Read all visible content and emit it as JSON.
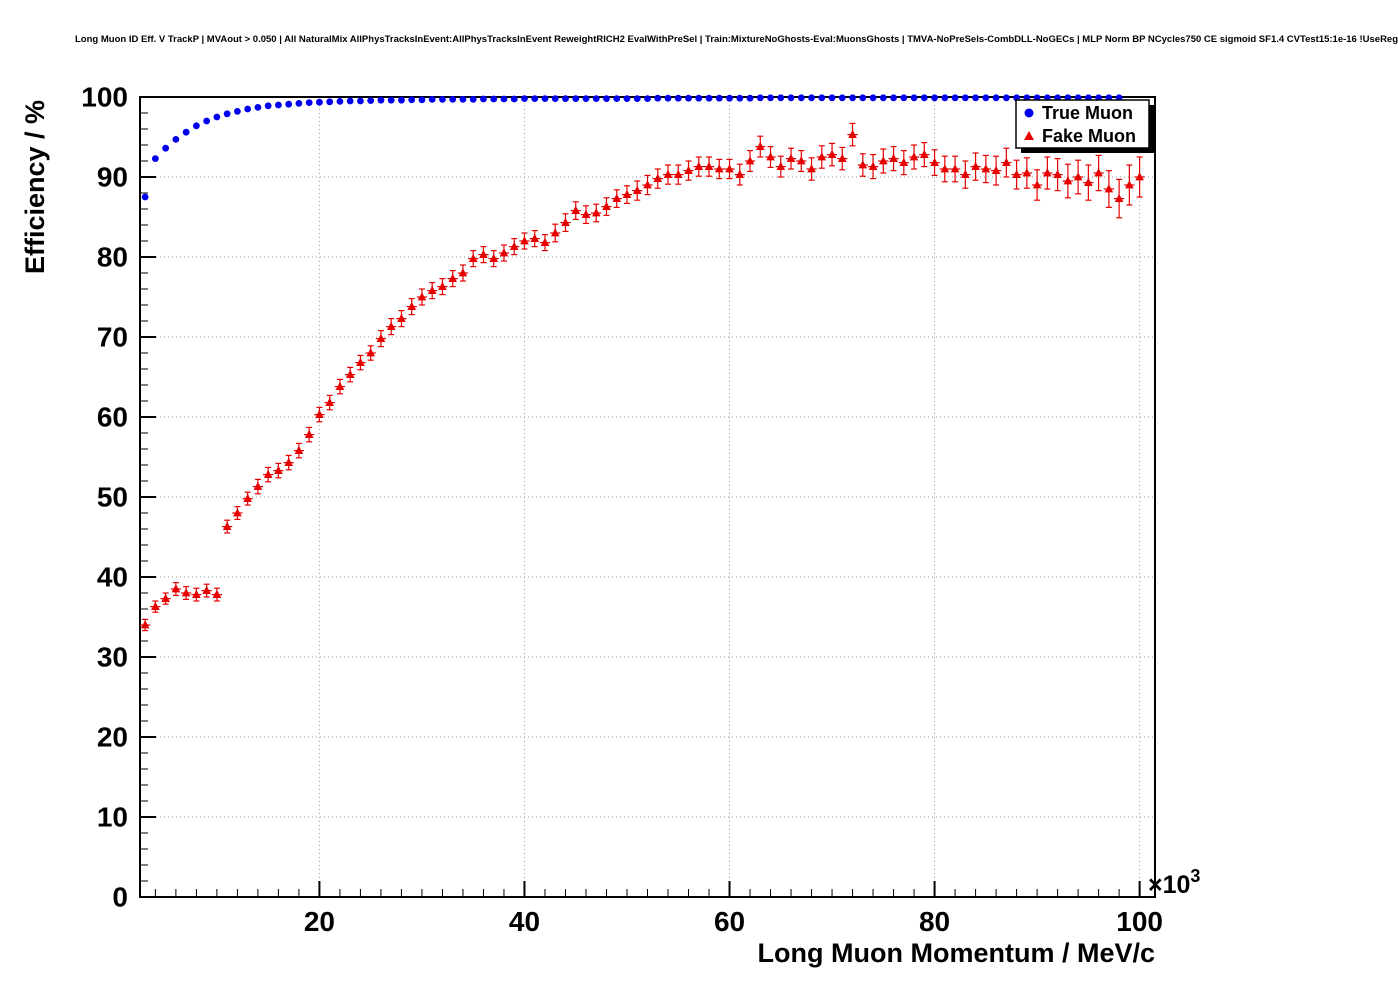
{
  "title": "Long Muon ID Eff. V TrackP | MVAout > 0.050 | All NaturalMix AllPhysTracksInEvent:AllPhysTracksInEvent ReweightRICH2 EvalWithPreSel | Train:MixtureNoGhosts-Eval:MuonsGhosts | TMVA-NoPreSels-CombDLL-NoGECs | MLP Norm BP NCycles750 CE sigmoid SF1.4 CVTest15:1e-16 !UseReg",
  "chart_data": {
    "type": "scatter",
    "title": "Long Muon ID Eff. V TrackP | MVAout > 0.050 | All NaturalMix AllPhysTracksInEvent:AllPhysTracksInEvent ReweightRICH2 EvalWithPreSel | Train:MixtureNoGhosts-Eval:MuonsGhosts | TMVA-NoPreSels-CombDLL-NoGECs | MLP Norm BP NCycles750 CE sigmoid SF1.4 CVTest15:1e-16 !UseReg",
    "xlabel": "Long Muon Momentum / MeV/c",
    "ylabel": "Efficiency / %",
    "x_exponent": {
      "prefix": "×10",
      "power": "3"
    },
    "x_units_note": "x values are in units of 10^3 MeV/c",
    "xlim": [
      2.5,
      101.5
    ],
    "ylim": [
      0,
      100
    ],
    "xticks_major": [
      20,
      40,
      60,
      80,
      100
    ],
    "xtick_minor_step": 2,
    "ytick_major_step": 10,
    "ytick_minor_step": 2,
    "grid": true,
    "legend": {
      "position": "top-right"
    },
    "colors": {
      "grid": "#999999",
      "frame": "#000000",
      "background": "#ffffff",
      "legend_shadow": "#000000"
    },
    "series": [
      {
        "name": "True Muon",
        "marker": "circle",
        "color": "#0000ee",
        "x_start": 3,
        "x_step": 1,
        "ex": 0,
        "y": [
          87.5,
          92.3,
          93.6,
          94.7,
          95.6,
          96.4,
          97.0,
          97.5,
          97.9,
          98.2,
          98.5,
          98.7,
          98.9,
          99.0,
          99.1,
          99.2,
          99.3,
          99.35,
          99.4,
          99.45,
          99.5,
          99.5,
          99.55,
          99.6,
          99.6,
          99.6,
          99.65,
          99.65,
          99.7,
          99.7,
          99.7,
          99.7,
          99.7,
          99.75,
          99.75,
          99.75,
          99.75,
          99.8,
          99.8,
          99.8,
          99.8,
          99.8,
          99.8,
          99.8,
          99.8,
          99.8,
          99.8,
          99.8,
          99.8,
          99.8,
          99.85,
          99.85,
          99.85,
          99.85,
          99.85,
          99.85,
          99.85,
          99.85,
          99.85,
          99.85,
          99.9,
          99.9,
          99.9,
          99.9,
          99.9,
          99.9,
          99.9,
          99.9,
          99.9,
          99.9,
          99.9,
          99.9,
          99.9,
          99.9,
          99.9,
          99.9,
          99.9,
          99.9,
          99.9,
          99.9,
          99.9,
          99.9,
          99.9,
          99.9,
          99.9,
          99.9,
          99.9,
          99.9,
          99.9,
          99.9,
          99.9,
          99.9,
          99.9,
          99.9,
          99.9,
          99.9
        ],
        "ey": null
      },
      {
        "name": "Fake Muon",
        "marker": "triangle",
        "color": "#e60000",
        "x_start": 3,
        "x_step": 1,
        "ex": 0.5,
        "y": [
          34.0,
          36.3,
          37.3,
          38.5,
          38.0,
          37.8,
          38.3,
          37.8,
          46.3,
          48.0,
          49.8,
          51.3,
          52.8,
          53.3,
          54.3,
          55.8,
          57.8,
          60.3,
          61.8,
          63.8,
          65.3,
          66.8,
          68.0,
          69.8,
          71.3,
          72.3,
          73.8,
          75.0,
          75.8,
          76.3,
          77.3,
          78.0,
          79.8,
          80.3,
          79.8,
          80.5,
          81.3,
          82.0,
          82.3,
          81.8,
          83.0,
          84.3,
          85.8,
          85.3,
          85.5,
          86.3,
          87.3,
          87.8,
          88.3,
          89.0,
          89.8,
          90.3,
          90.3,
          90.8,
          91.3,
          91.3,
          91.0,
          91.0,
          90.3,
          92.0,
          93.8,
          92.5,
          91.3,
          92.3,
          92.0,
          91.0,
          92.5,
          92.8,
          92.3,
          95.3,
          91.5,
          91.3,
          92.0,
          92.3,
          91.8,
          92.5,
          92.8,
          91.8,
          91.0,
          91.0,
          90.3,
          91.3,
          91.0,
          90.8,
          91.8,
          90.3,
          90.5,
          89.0,
          90.5,
          90.3,
          89.5,
          90.0,
          89.3,
          90.5,
          88.5,
          87.3,
          89.0,
          90.0
        ],
        "ey": [
          0.7,
          0.7,
          0.7,
          0.8,
          0.8,
          0.8,
          0.8,
          0.8,
          0.8,
          0.8,
          0.8,
          0.9,
          0.9,
          0.9,
          0.9,
          0.9,
          0.9,
          0.9,
          0.9,
          0.9,
          0.9,
          0.9,
          0.9,
          1.0,
          1.0,
          1.0,
          1.0,
          1.0,
          1.0,
          1.0,
          1.0,
          1.0,
          1.0,
          1.0,
          1.0,
          1.0,
          1.0,
          1.0,
          1.0,
          1.0,
          1.1,
          1.1,
          1.1,
          1.1,
          1.1,
          1.1,
          1.1,
          1.1,
          1.2,
          1.2,
          1.2,
          1.2,
          1.2,
          1.2,
          1.2,
          1.2,
          1.2,
          1.2,
          1.3,
          1.3,
          1.3,
          1.3,
          1.3,
          1.3,
          1.3,
          1.4,
          1.4,
          1.4,
          1.4,
          1.4,
          1.4,
          1.5,
          1.5,
          1.5,
          1.5,
          1.5,
          1.5,
          1.6,
          1.6,
          1.6,
          1.7,
          1.7,
          1.7,
          1.8,
          1.8,
          1.8,
          1.9,
          1.9,
          2.0,
          2.0,
          2.1,
          2.1,
          2.2,
          2.2,
          2.3,
          2.4,
          2.5,
          2.5
        ]
      }
    ]
  }
}
